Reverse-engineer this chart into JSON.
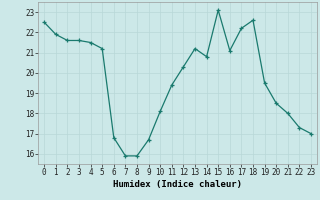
{
  "x": [
    0,
    1,
    2,
    3,
    4,
    5,
    6,
    7,
    8,
    9,
    10,
    11,
    12,
    13,
    14,
    15,
    16,
    17,
    18,
    19,
    20,
    21,
    22,
    23
  ],
  "y": [
    22.5,
    21.9,
    21.6,
    21.6,
    21.5,
    21.2,
    16.8,
    15.9,
    15.9,
    16.7,
    18.1,
    19.4,
    20.3,
    21.2,
    20.8,
    23.1,
    21.1,
    22.2,
    22.6,
    19.5,
    18.5,
    18.0,
    17.3,
    17.0
  ],
  "line_color": "#1a7a6e",
  "marker": "+",
  "bg_color": "#cce8e8",
  "grid_color": "#b8d8d8",
  "xlabel": "Humidex (Indice chaleur)",
  "ylim": [
    15.5,
    23.5
  ],
  "xlim": [
    -0.5,
    23.5
  ],
  "yticks": [
    16,
    17,
    18,
    19,
    20,
    21,
    22,
    23
  ],
  "xticks": [
    0,
    1,
    2,
    3,
    4,
    5,
    6,
    7,
    8,
    9,
    10,
    11,
    12,
    13,
    14,
    15,
    16,
    17,
    18,
    19,
    20,
    21,
    22,
    23
  ],
  "axis_fontsize": 6.5,
  "tick_fontsize": 5.5
}
